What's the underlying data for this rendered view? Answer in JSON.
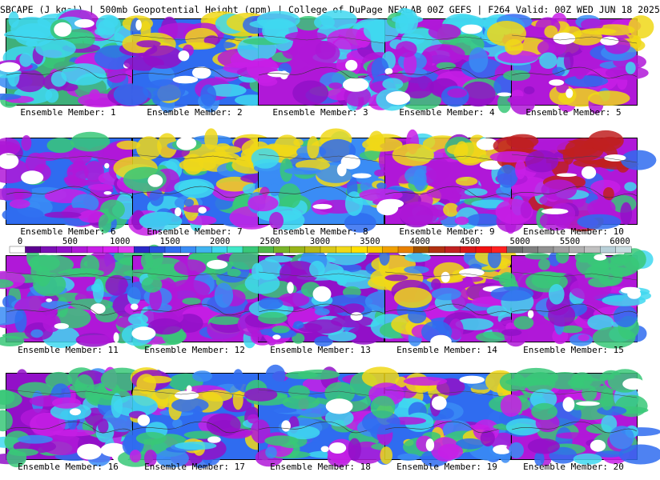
{
  "title": "SBCAPE (J kg⁻¹) | 500mb Geopotential Height (gpm) | College of DuPage NEXLAB 00Z GEFS | F264 Valid: 00Z WED JUN 18 2025",
  "colorbar": {
    "tick_labels": [
      "0",
      "500",
      "1000",
      "1500",
      "2000",
      "2500",
      "3000",
      "3500",
      "4000",
      "4500",
      "5000",
      "5500",
      "6000"
    ],
    "colors": [
      "#ffffff",
      "#5c0090",
      "#7a0fb4",
      "#9210c8",
      "#b018d8",
      "#c81ee6",
      "#d820f0",
      "#e040f0",
      "#2a28c8",
      "#2850e0",
      "#2f6cf0",
      "#3a8cf5",
      "#40b4f0",
      "#40d8f0",
      "#40e8c8",
      "#38c878",
      "#50b848",
      "#78b428",
      "#98b418",
      "#b8b818",
      "#d8c818",
      "#f0d818",
      "#ffe000",
      "#f8c800",
      "#f0a000",
      "#e88000",
      "#a05000",
      "#b03010",
      "#c02020",
      "#d81818",
      "#f01010",
      "#ff2020",
      "#707070",
      "#808080",
      "#909090",
      "#a0a0a0",
      "#b0b0b0",
      "#c0c0c0",
      "#b8d0d8",
      "#c8dce0"
    ]
  },
  "members": [
    {
      "label": "Ensemble Member: 1",
      "dominant": "#3fb07a",
      "accent": "#40d8f0"
    },
    {
      "label": "Ensemble Member: 2",
      "dominant": "#2f6cf0",
      "accent": "#f0d818"
    },
    {
      "label": "Ensemble Member: 3",
      "dominant": "#b018d8",
      "accent": "#40d8f0"
    },
    {
      "label": "Ensemble Member: 4",
      "dominant": "#b018d8",
      "accent": "#40d8f0"
    },
    {
      "label": "Ensemble Member: 5",
      "dominant": "#b018d8",
      "accent": "#f0d818"
    },
    {
      "label": "Ensemble Member: 6",
      "dominant": "#2f6cf0",
      "accent": "#b018d8"
    },
    {
      "label": "Ensemble Member: 7",
      "dominant": "#2f6cf0",
      "accent": "#f0d818"
    },
    {
      "label": "Ensemble Member: 8",
      "dominant": "#3a8cf5",
      "accent": "#f0d818"
    },
    {
      "label": "Ensemble Member: 9",
      "dominant": "#b018d8",
      "accent": "#f0d818"
    },
    {
      "label": "Ensemble Member: 10",
      "dominant": "#b018d8",
      "accent": "#c02020"
    },
    {
      "label": "Ensemble Member: 11",
      "dominant": "#b018d8",
      "accent": "#38c878"
    },
    {
      "label": "Ensemble Member: 12",
      "dominant": "#b018d8",
      "accent": "#38c878"
    },
    {
      "label": "Ensemble Member: 13",
      "dominant": "#9210c8",
      "accent": "#40d8f0"
    },
    {
      "label": "Ensemble Member: 14",
      "dominant": "#b018d8",
      "accent": "#f0d818"
    },
    {
      "label": "Ensemble Member: 15",
      "dominant": "#b018d8",
      "accent": "#38c878"
    },
    {
      "label": "Ensemble Member: 16",
      "dominant": "#9210c8",
      "accent": "#38c878"
    },
    {
      "label": "Ensemble Member: 17",
      "dominant": "#2f6cf0",
      "accent": "#f0d818"
    },
    {
      "label": "Ensemble Member: 18",
      "dominant": "#2f6cf0",
      "accent": "#38c878"
    },
    {
      "label": "Ensemble Member: 19",
      "dominant": "#2f6cf0",
      "accent": "#f0d818"
    },
    {
      "label": "Ensemble Member: 20",
      "dominant": "#b018d8",
      "accent": "#38c878"
    }
  ]
}
